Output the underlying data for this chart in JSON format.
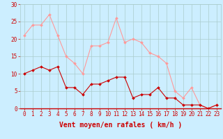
{
  "hours": [
    0,
    1,
    2,
    3,
    4,
    5,
    6,
    7,
    8,
    9,
    10,
    11,
    12,
    13,
    14,
    15,
    16,
    17,
    18,
    19,
    20,
    21,
    22,
    23
  ],
  "vent_moyen": [
    10,
    11,
    12,
    11,
    12,
    6,
    6,
    4,
    7,
    7,
    8,
    9,
    9,
    3,
    4,
    4,
    6,
    3,
    3,
    1,
    1,
    1,
    0,
    1
  ],
  "rafales": [
    21,
    24,
    24,
    27,
    21,
    15,
    13,
    10,
    18,
    18,
    19,
    26,
    19,
    20,
    19,
    16,
    15,
    13,
    5,
    3,
    6,
    1,
    0,
    1
  ],
  "color_moyen": "#cc0000",
  "color_rafales": "#ff9999",
  "background_color": "#cceeff",
  "grid_color": "#aacccc",
  "xlabel": "Vent moyen/en rafales ( km/h )",
  "ylim": [
    0,
    30
  ],
  "yticks": [
    0,
    5,
    10,
    15,
    20,
    25,
    30
  ],
  "tick_fontsize": 5.5,
  "xlabel_fontsize": 7
}
